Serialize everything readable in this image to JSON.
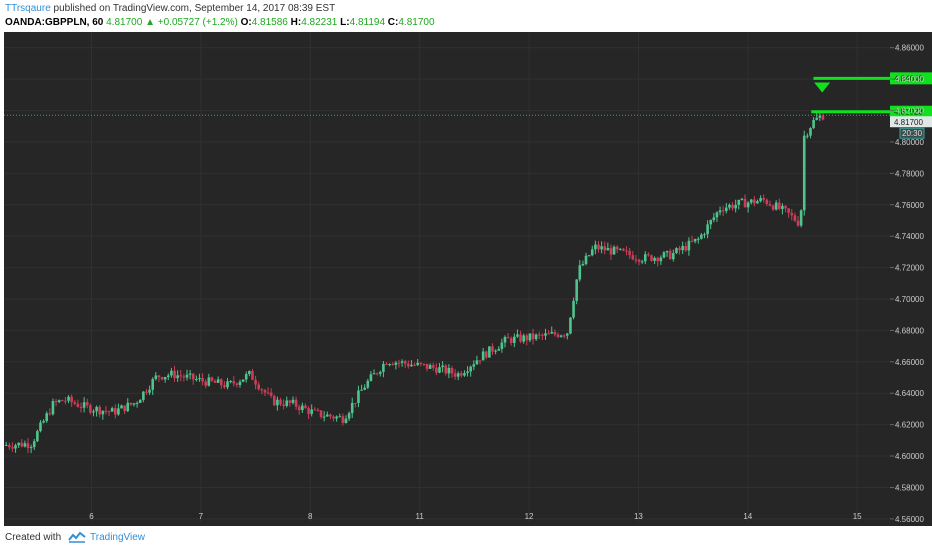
{
  "header": {
    "author": "TTrsqaure",
    "published": "published on TradingView.com, September 14, 2017 08:39 EST",
    "symbol": "OANDA:GBPPLN, 60",
    "last": "4.81700",
    "change": "+0.05727 (+1.2%)",
    "o_label": "O:",
    "o_val": "4.81586",
    "h_label": "H:",
    "h_val": "4.82231",
    "l_label": "L:",
    "l_val": "4.81194",
    "c_label": "C:",
    "c_val": "4.81700"
  },
  "footer": {
    "created": "Created with",
    "brand": "TradingView"
  },
  "colors": {
    "background": "#262626",
    "up": "#4ec58d",
    "down": "#cc3d57",
    "level": "#0fe11d",
    "price": "#3aa19a"
  },
  "chart_data": {
    "type": "candlestick",
    "y_ticks": [
      "4.86000",
      "4.84000",
      "4.82000",
      "4.80000",
      "4.78000",
      "4.76000",
      "4.74000",
      "4.72000",
      "4.70000",
      "4.68000",
      "4.66000",
      "4.64000",
      "4.62000",
      "4.60000",
      "4.58000",
      "4.56000"
    ],
    "ylim": [
      4.558,
      4.87
    ],
    "x_ticks": [
      {
        "label": "6",
        "x": 6
      },
      {
        "label": "7",
        "x": 7
      },
      {
        "label": "8",
        "x": 8
      },
      {
        "label": "11",
        "x": 9
      },
      {
        "label": "12",
        "x": 10
      },
      {
        "label": "13",
        "x": 11
      },
      {
        "label": "14",
        "x": 12
      },
      {
        "label": "15",
        "x": 13
      }
    ],
    "xlim": [
      5.2,
      13.3
    ],
    "levels": [
      {
        "label": "4.84049",
        "value": 4.84049
      },
      {
        "label": "4.81923",
        "value": 4.81923
      }
    ],
    "last_price": {
      "label": "4.81700",
      "value": 4.817,
      "countdown": "20:30"
    },
    "marker": {
      "type": "down-triangle",
      "value": 4.834,
      "x": 12.68
    },
    "anchors": [
      [
        5.2,
        4.607
      ],
      [
        5.45,
        4.608
      ],
      [
        5.65,
        4.633
      ],
      [
        5.75,
        4.636
      ],
      [
        5.95,
        4.631
      ],
      [
        6.2,
        4.628
      ],
      [
        6.4,
        4.634
      ],
      [
        6.6,
        4.651
      ],
      [
        6.75,
        4.652
      ],
      [
        7.0,
        4.648
      ],
      [
        7.25,
        4.645
      ],
      [
        7.45,
        4.652
      ],
      [
        7.65,
        4.635
      ],
      [
        7.85,
        4.633
      ],
      [
        8.05,
        4.627
      ],
      [
        8.3,
        4.624
      ],
      [
        8.5,
        4.645
      ],
      [
        8.7,
        4.661
      ],
      [
        8.95,
        4.658
      ],
      [
        9.15,
        4.656
      ],
      [
        9.35,
        4.652
      ],
      [
        9.55,
        4.663
      ],
      [
        9.8,
        4.674
      ],
      [
        10.1,
        4.676
      ],
      [
        10.35,
        4.679
      ],
      [
        10.45,
        4.718
      ],
      [
        10.6,
        4.733
      ],
      [
        10.8,
        4.73
      ],
      [
        11.05,
        4.726
      ],
      [
        11.3,
        4.728
      ],
      [
        11.55,
        4.738
      ],
      [
        11.75,
        4.758
      ],
      [
        11.95,
        4.761
      ],
      [
        12.15,
        4.763
      ],
      [
        12.35,
        4.755
      ],
      [
        12.48,
        4.748
      ],
      [
        12.52,
        4.798
      ],
      [
        12.58,
        4.812
      ],
      [
        12.68,
        4.817
      ]
    ]
  }
}
